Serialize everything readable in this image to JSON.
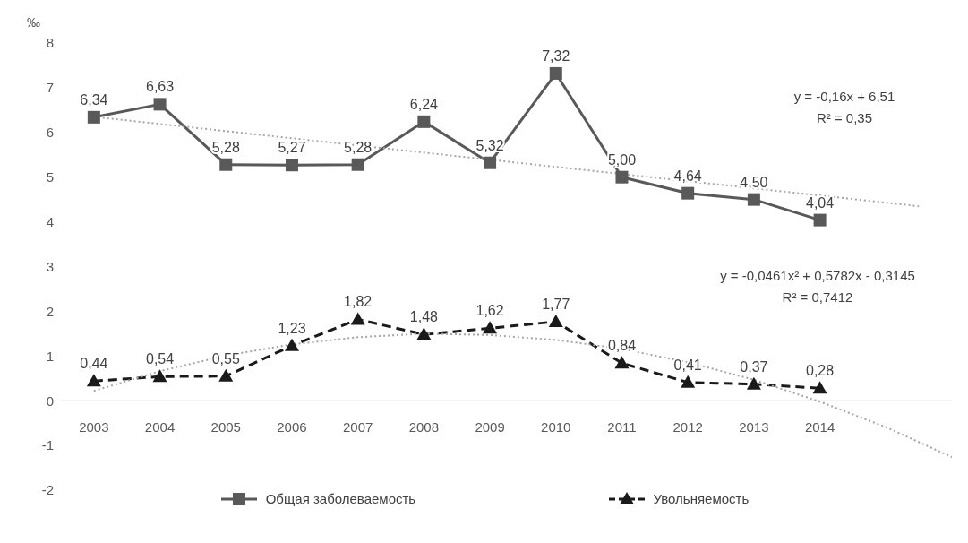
{
  "chart_data": {
    "type": "line",
    "ylabel": "‰",
    "x": [
      2003,
      2004,
      2005,
      2006,
      2007,
      2008,
      2009,
      2010,
      2011,
      2012,
      2013,
      2014
    ],
    "xlim": [
      2002.5,
      2016
    ],
    "xticks": [
      2003,
      2004,
      2005,
      2006,
      2007,
      2008,
      2009,
      2010,
      2011,
      2012,
      2013,
      2014
    ],
    "ylim": [
      -2,
      8
    ],
    "yticks": [
      -2,
      -1,
      0,
      1,
      2,
      3,
      4,
      5,
      6,
      7,
      8
    ],
    "grid": false,
    "legend": "bottom",
    "series": [
      {
        "name": "Общая заболеваемость",
        "color": "#595959",
        "marker": "square",
        "line_style": "solid",
        "values": [
          6.34,
          6.63,
          5.28,
          5.27,
          5.28,
          6.24,
          5.32,
          7.32,
          5.0,
          4.64,
          4.5,
          4.04
        ],
        "value_labels": [
          "6,34",
          "6,63",
          "5,28",
          "5,27",
          "5,28",
          "6,24",
          "5,32",
          "7,32",
          "5,00",
          "4,64",
          "4,50",
          "4,04"
        ]
      },
      {
        "name": "Увольняемость",
        "color": "#1a1a1a",
        "marker": "triangle",
        "line_style": "dashed",
        "values": [
          0.44,
          0.54,
          0.55,
          1.23,
          1.82,
          1.48,
          1.62,
          1.77,
          0.84,
          0.41,
          0.37,
          0.28
        ],
        "value_labels": [
          "0,44",
          "0,54",
          "0,55",
          "1,23",
          "1,82",
          "1,48",
          "1,62",
          "1,77",
          "0,84",
          "0,41",
          "0,37",
          "0,28"
        ]
      },
      {
        "type": "line",
        "color": "#a6a6a6",
        "marker": "none",
        "line_style": "dotted",
        "x": [
          2003,
          2015.5
        ],
        "values": [
          6.35,
          4.35
        ]
      },
      {
        "type": "line",
        "color": "#a6a6a6",
        "marker": "none",
        "line_style": "dotted",
        "x": [
          2003,
          2004,
          2005,
          2006,
          2007,
          2008,
          2009,
          2010,
          2011,
          2012,
          2013,
          2014,
          2015,
          2016
        ],
        "values": [
          0.22,
          0.66,
          1.01,
          1.26,
          1.42,
          1.5,
          1.47,
          1.36,
          1.16,
          0.86,
          0.47,
          -0.02,
          -0.59,
          -1.26
        ]
      }
    ],
    "annotations": [
      "y = -0,16x + 6,51\nR² = 0,35",
      "y = -0,0461x² + 0,5782x - 0,3145\nR² = 0,7412"
    ]
  }
}
